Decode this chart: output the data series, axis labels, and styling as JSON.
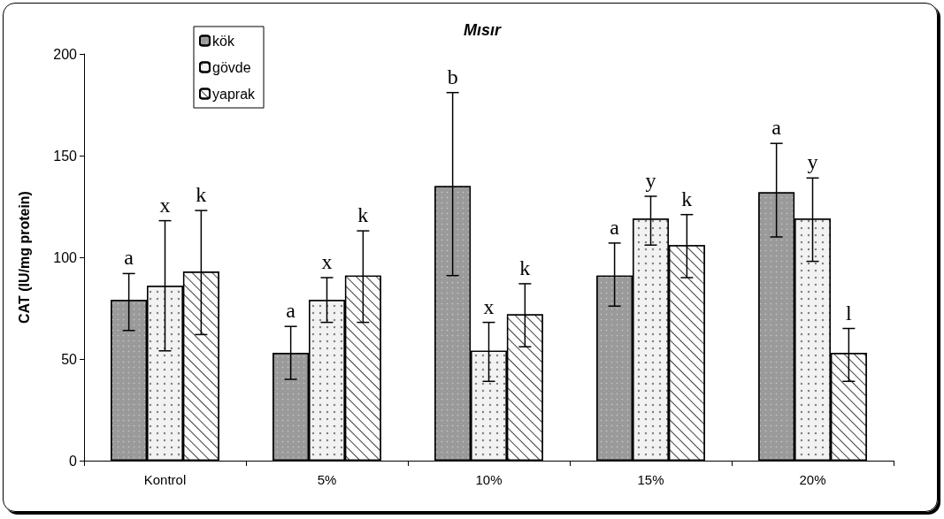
{
  "chart_data": {
    "type": "bar",
    "title": "Mısır",
    "ylabel": "CAT (IU/mg protein)",
    "categories": [
      "Kontrol",
      "5%",
      "10%",
      "15%",
      "20%"
    ],
    "series": [
      {
        "name": "kök",
        "color": "#9a9a9a",
        "values": [
          79,
          53,
          135,
          91,
          132
        ],
        "errors": [
          [
            64,
            92
          ],
          [
            40,
            66
          ],
          [
            91,
            181
          ],
          [
            76,
            107
          ],
          [
            110,
            156
          ]
        ]
      },
      {
        "name": "gövde",
        "color": "#f2f2f2",
        "values": [
          86,
          79,
          54,
          119,
          119
        ],
        "errors": [
          [
            54,
            118
          ],
          [
            68,
            90
          ],
          [
            39,
            68
          ],
          [
            106,
            130
          ],
          [
            98,
            139
          ]
        ]
      },
      {
        "name": "yaprak",
        "color": "#ffffff",
        "values": [
          93,
          91,
          72,
          106,
          53
        ],
        "errors": [
          [
            62,
            123
          ],
          [
            68,
            113
          ],
          [
            56,
            87
          ],
          [
            90,
            121
          ],
          [
            39,
            65
          ]
        ]
      }
    ],
    "ylim": [
      0,
      200
    ],
    "yticks": [
      0,
      50,
      100,
      150,
      200
    ],
    "grid": false,
    "legend": "top left",
    "annotations": [
      "a",
      "x",
      "k",
      "a",
      "x",
      "k",
      "b",
      "x",
      "k",
      "a",
      "y",
      "k",
      "a",
      "y",
      "l"
    ]
  }
}
